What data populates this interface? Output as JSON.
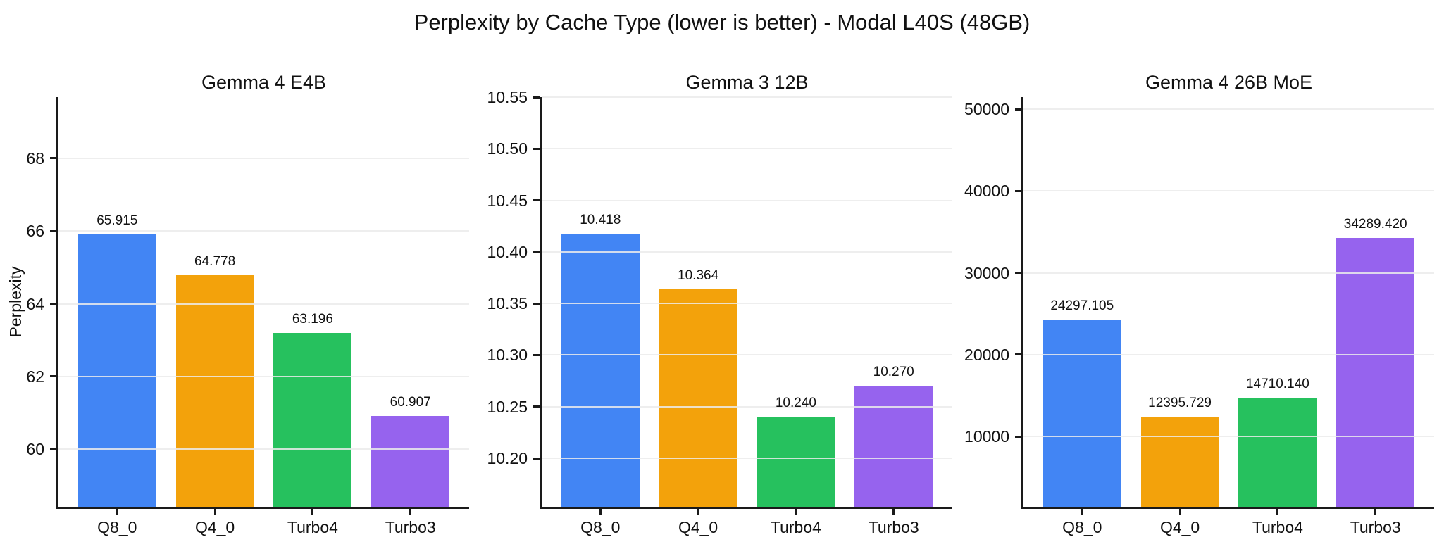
{
  "figure": {
    "title": "Perplexity by Cache Type (lower is better) - Modal L40S (48GB)",
    "background_color": "#ffffff",
    "text_color": "#111111",
    "spine_color": "#1a1a1a",
    "grid_color": "#ebebeb"
  },
  "bar_palette": {
    "blue": "#4285F4",
    "orange": "#F3A20B",
    "green": "#26C15E",
    "purple": "#9663EE"
  },
  "chart_data": [
    {
      "type": "bar",
      "title": "Gemma 4 E4B",
      "categories": [
        "Q8_0",
        "Q4_0",
        "Turbo4",
        "Turbo3"
      ],
      "values": [
        65.915,
        64.778,
        63.196,
        60.907
      ],
      "value_labels": [
        "65.915",
        "64.778",
        "63.196",
        "60.907"
      ],
      "bar_colors": [
        "#4285F4",
        "#F3A20B",
        "#26C15E",
        "#9663EE"
      ],
      "xlabel": "",
      "ylabel": "Perplexity",
      "ylim": [
        58.42,
        69.68
      ],
      "yticks": [
        60,
        62,
        64,
        66,
        68
      ],
      "ytick_labels": [
        "60",
        "62",
        "64",
        "66",
        "68"
      ],
      "grid": true,
      "legend": "none"
    },
    {
      "type": "bar",
      "title": "Gemma 3 12B",
      "categories": [
        "Q8_0",
        "Q4_0",
        "Turbo4",
        "Turbo3"
      ],
      "values": [
        10.418,
        10.364,
        10.24,
        10.27
      ],
      "value_labels": [
        "10.418",
        "10.364",
        "10.240",
        "10.270"
      ],
      "bar_colors": [
        "#4285F4",
        "#F3A20B",
        "#26C15E",
        "#9663EE"
      ],
      "xlabel": "",
      "ylabel": "",
      "ylim": [
        10.153,
        10.55
      ],
      "yticks": [
        10.2,
        10.25,
        10.3,
        10.35,
        10.4,
        10.45,
        10.5,
        10.55
      ],
      "ytick_labels": [
        "10.20",
        "10.25",
        "10.30",
        "10.35",
        "10.40",
        "10.45",
        "10.50",
        "10.55"
      ],
      "grid": true,
      "legend": "none"
    },
    {
      "type": "bar",
      "title": "Gemma 4 26B MoE",
      "categories": [
        "Q8_0",
        "Q4_0",
        "Turbo4",
        "Turbo3"
      ],
      "values": [
        24297.105,
        12395.729,
        14710.14,
        34289.42
      ],
      "value_labels": [
        "24297.105",
        "12395.729",
        "14710.140",
        "34289.420"
      ],
      "bar_colors": [
        "#4285F4",
        "#F3A20B",
        "#26C15E",
        "#9663EE"
      ],
      "xlabel": "",
      "ylabel": "",
      "ylim": [
        1420,
        51480
      ],
      "yticks": [
        10000,
        20000,
        30000,
        40000,
        50000
      ],
      "ytick_labels": [
        "10000",
        "20000",
        "30000",
        "40000",
        "50000"
      ],
      "grid": true,
      "legend": "none"
    }
  ]
}
